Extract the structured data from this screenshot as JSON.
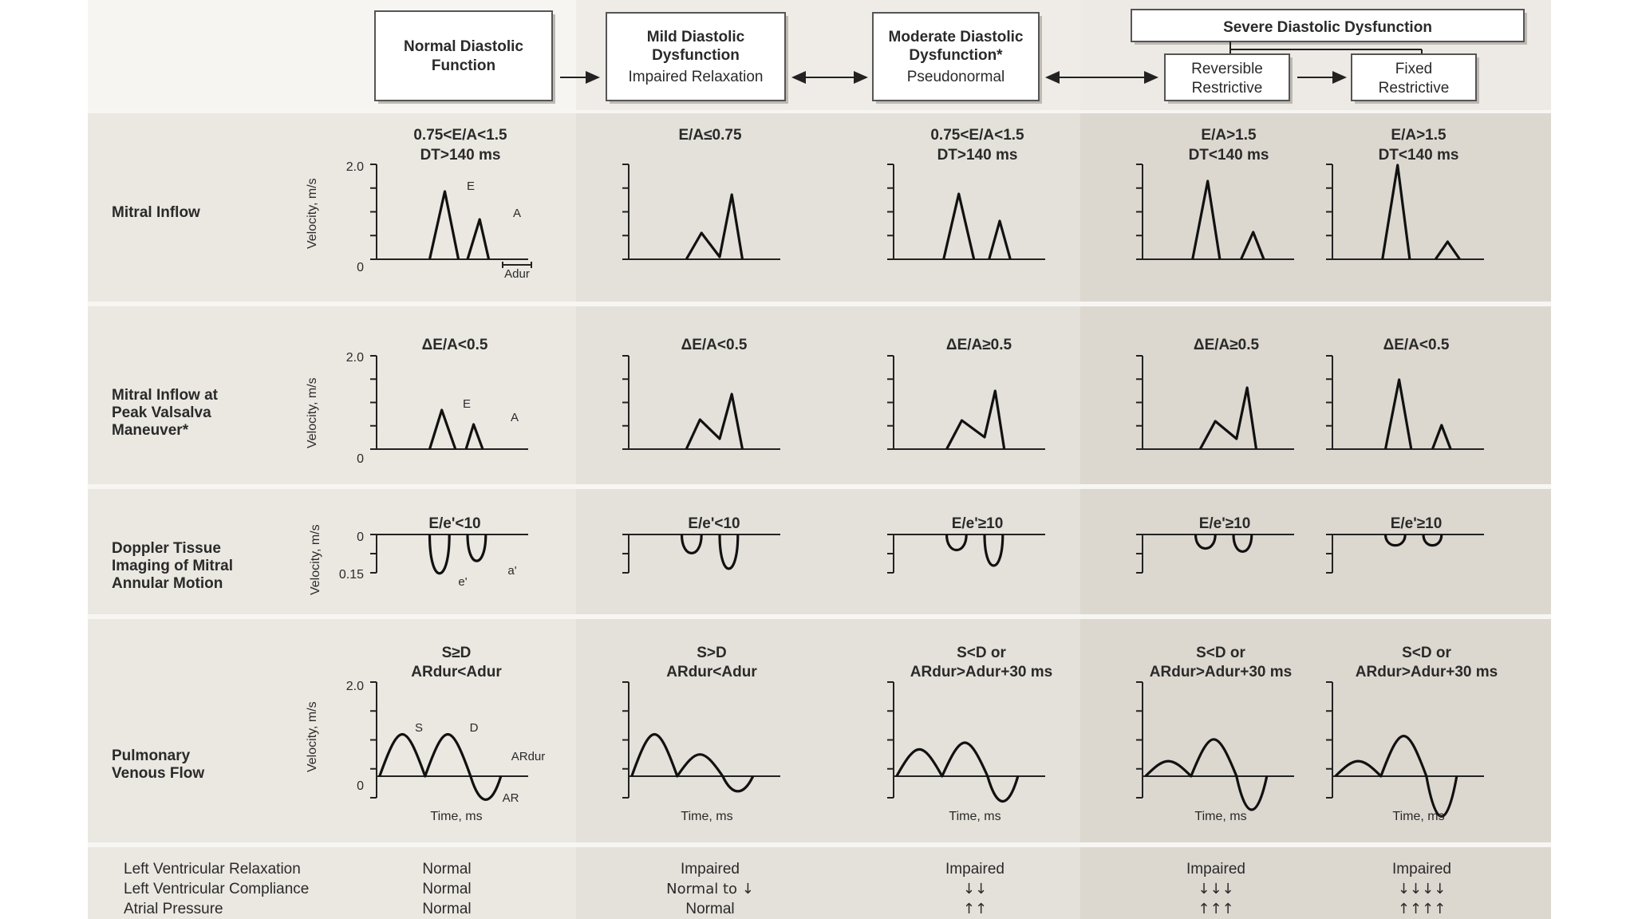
{
  "headers": {
    "normal": {
      "line1": "Normal Diastolic",
      "line2": "Function"
    },
    "mild": {
      "line1": "Mild Diastolic",
      "line2": "Dysfunction",
      "sub": "Impaired Relaxation"
    },
    "moderate": {
      "line1": "Moderate Diastolic",
      "line2": "Dysfunction*",
      "sub": "Pseudonormal"
    },
    "severe": {
      "title": "Severe Diastolic Dysfunction",
      "reversible": {
        "line1": "Reversible",
        "line2": "Restrictive"
      },
      "fixed": {
        "line1": "Fixed",
        "line2": "Restrictive"
      }
    }
  },
  "rows": {
    "mitral_inflow": {
      "label": [
        "Mitral Inflow"
      ],
      "criteria": [
        [
          "0.75<E/A<1.5",
          "DT>140 ms"
        ],
        [
          "E/A≤0.75",
          ""
        ],
        [
          "0.75<E/A<1.5",
          "DT>140 ms"
        ],
        [
          "E/A>1.5",
          "DT<140 ms"
        ],
        [
          "E/A>1.5",
          "DT<140 ms"
        ]
      ],
      "ytick_top": "2.0",
      "ytick_bottom": "0",
      "ylabel": "Velocity, m/s",
      "peak_e": "E",
      "peak_a": "A",
      "adur": "Adur"
    },
    "valsalva": {
      "label": [
        "Mitral Inflow at",
        "Peak Valsalva",
        "Maneuver*"
      ],
      "criteria": [
        "ΔE/A<0.5",
        "ΔE/A<0.5",
        "ΔE/A≥0.5",
        "ΔE/A≥0.5",
        "ΔE/A<0.5"
      ],
      "ytick_top": "2.0",
      "ytick_bottom": "0",
      "ylabel": "Velocity, m/s",
      "peak_e": "E",
      "peak_a": "A"
    },
    "tissue": {
      "label": [
        "Doppler Tissue",
        "Imaging of Mitral",
        "Annular Motion"
      ],
      "criteria": [
        "E/e'<10",
        "E/e'<10",
        "E/e'≥10",
        "E/e'≥10",
        "E/e'≥10"
      ],
      "ytick_top": "0",
      "ytick_bottom": "0.15",
      "ylabel": "Velocity, m/s",
      "peak_e": "e'",
      "peak_a": "a'"
    },
    "pulmonary": {
      "label": [
        "Pulmonary",
        "Venous Flow"
      ],
      "criteria": [
        [
          "S≥D",
          "ARdur<Adur"
        ],
        [
          "S>D",
          "ARdur<Adur"
        ],
        [
          "S<D or",
          "ARdur>Adur+30 ms"
        ],
        [
          "S<D or",
          "ARdur>Adur+30 ms"
        ],
        [
          "S<D or",
          "ARdur>Adur+30 ms"
        ]
      ],
      "ytick_top": "2.0",
      "ytick_bottom": "0",
      "ylabel": "Velocity, m/s",
      "peak_s": "S",
      "peak_d": "D",
      "ardur": "ARdur",
      "ar": "AR",
      "xlabel": "Time, ms"
    }
  },
  "summary": {
    "labels": [
      "Left Ventricular Relaxation",
      "Left Ventricular Compliance",
      "Atrial Pressure"
    ],
    "values": [
      [
        "Normal",
        "Normal",
        "Normal"
      ],
      [
        "Impaired",
        "Normal to ↓",
        "Normal"
      ],
      [
        "Impaired",
        "↓↓",
        "↑↑"
      ],
      [
        "Impaired",
        "↓↓↓",
        "↑↑↑"
      ],
      [
        "Impaired",
        "↓↓↓↓",
        "↑↑↑↑"
      ]
    ]
  }
}
